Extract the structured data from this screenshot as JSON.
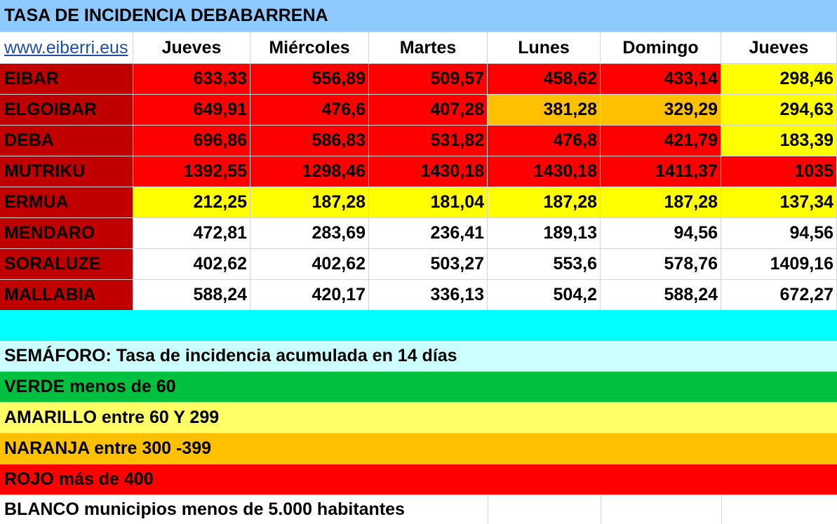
{
  "title": "TASA DE INCIDENCIA DEBABARRENA",
  "link_text": "www.eiberri.eus",
  "columns": [
    "Jueves",
    "Miércoles",
    "Martes",
    "Lunes",
    "Domingo",
    "Jueves"
  ],
  "colors": {
    "title_bg": "#8ec9ff",
    "name_bg": "#c00000",
    "red": "#ff0000",
    "orange": "#ffc000",
    "yellow": "#ffff00",
    "white": "#ffffff",
    "cyan": "#00ffff",
    "light_cyan": "#ccffff",
    "green": "#00c040",
    "light_yellow": "#ffff66"
  },
  "rows": [
    {
      "name": "EIBAR",
      "values": [
        "633,33",
        "556,89",
        "509,57",
        "458,62",
        "433,14",
        "298,46"
      ],
      "colors": [
        "red",
        "red",
        "red",
        "red",
        "red",
        "yellow"
      ]
    },
    {
      "name": "ELGOIBAR",
      "values": [
        "649,91",
        "476,6",
        "407,28",
        "381,28",
        "329,29",
        "294,63"
      ],
      "colors": [
        "red",
        "red",
        "red",
        "orange",
        "orange",
        "yellow"
      ]
    },
    {
      "name": "DEBA",
      "values": [
        "696,86",
        "586,83",
        "531,82",
        "476,8",
        "421,79",
        "183,39"
      ],
      "colors": [
        "red",
        "red",
        "red",
        "red",
        "red",
        "yellow"
      ]
    },
    {
      "name": "MUTRIKU",
      "values": [
        "1392,55",
        "1298,46",
        "1430,18",
        "1430,18",
        "1411,37",
        "1035"
      ],
      "colors": [
        "red",
        "red",
        "red",
        "red",
        "red",
        "red"
      ]
    },
    {
      "name": "ERMUA",
      "values": [
        "212,25",
        "187,28",
        "181,04",
        "187,28",
        "187,28",
        "137,34"
      ],
      "colors": [
        "yellow",
        "yellow",
        "yellow",
        "yellow",
        "yellow",
        "yellow"
      ]
    },
    {
      "name": "MENDARO",
      "values": [
        "472,81",
        "283,69",
        "236,41",
        "189,13",
        "94,56",
        "94,56"
      ],
      "colors": [
        "white",
        "white",
        "white",
        "white",
        "white",
        "white"
      ]
    },
    {
      "name": "SORALUZE",
      "values": [
        "402,62",
        "402,62",
        "503,27",
        "553,6",
        "578,76",
        "1409,16"
      ],
      "colors": [
        "white",
        "white",
        "white",
        "white",
        "white",
        "white"
      ]
    },
    {
      "name": "MALLABIA",
      "values": [
        "588,24",
        "420,17",
        "336,13",
        "504,2",
        "588,24",
        "672,27"
      ],
      "colors": [
        "white",
        "white",
        "white",
        "white",
        "white",
        "white"
      ]
    }
  ],
  "legend": {
    "heading": "SEMÁFORO:  Tasa de incidencia acumulada en 14 días",
    "verde": "VERDE menos de 60",
    "amarillo": "AMARILLO entre 60 Y 299",
    "naranja": "NARANJA entre 300 -399",
    "rojo": "ROJO más de 400",
    "blanco": "BLANCO municipios menos de 5.000 habitantes"
  }
}
